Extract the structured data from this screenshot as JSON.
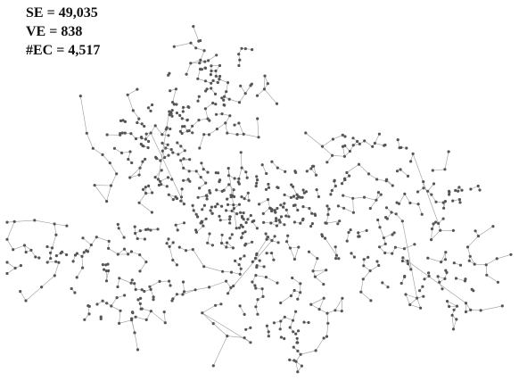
{
  "stats": {
    "se": "SE = 49,035",
    "ve": "VE = 838",
    "ec": "#EC = 4,517"
  },
  "graph": {
    "node_color": "#555555",
    "edge_color": "#9a9a9a",
    "background": "#ffffff"
  }
}
